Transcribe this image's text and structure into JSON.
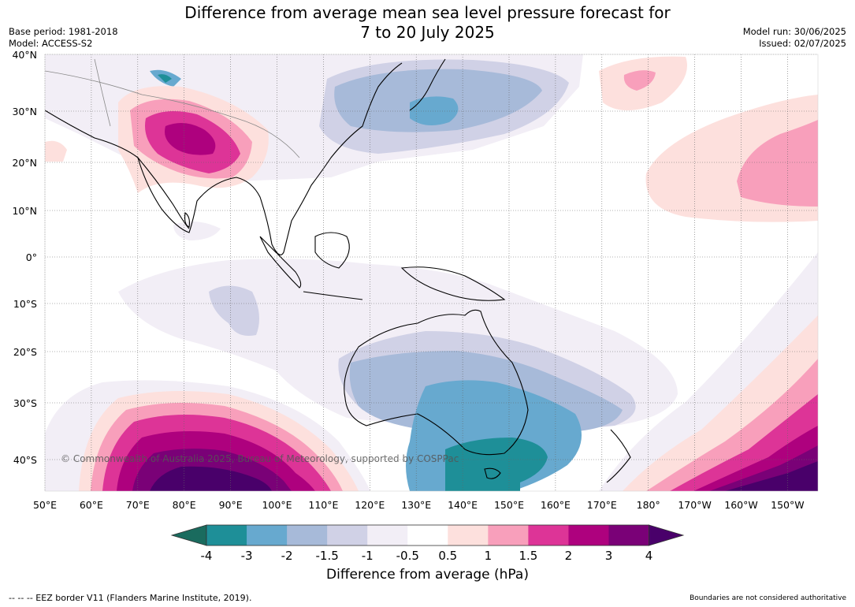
{
  "title_line1": "Difference from average mean sea level pressure forecast for",
  "title_line2": "7 to 20 July 2025",
  "base_period": "Base period: 1981-2018",
  "model": "Model: ACCESS-S2",
  "model_run": "Model run: 30/06/2025",
  "issued": "Issued: 02/07/2025",
  "copyright": "© Commonwealth of Australia 2025, Bureau of Meteorology, supported by COSPPac",
  "lon_labels": [
    "50°E",
    "60°E",
    "70°E",
    "80°E",
    "90°E",
    "100°E",
    "110°E",
    "120°E",
    "130°E",
    "140°E",
    "150°E",
    "160°E",
    "170°E",
    "180°",
    "170°W",
    "160°W",
    "150°W"
  ],
  "lat_labels": [
    "40°N",
    "30°N",
    "20°N",
    "10°N",
    "0°",
    "10°S",
    "20°S",
    "30°S",
    "40°S"
  ],
  "colorbar": {
    "title": "Difference from average (hPa)",
    "ticks": [
      "-4",
      "-3",
      "-2",
      "-1.5",
      "-1",
      "-0.5",
      "0.5",
      "1",
      "1.5",
      "2",
      "3",
      "4"
    ],
    "colors": [
      "#1a6b5e",
      "#1e8f98",
      "#67a9cf",
      "#a7bad9",
      "#d0d1e6",
      "#f2eef6",
      "#ffffff",
      "#fde0dd",
      "#f89fbb",
      "#dd3497",
      "#ae017e",
      "#7a0177",
      "#49006a"
    ]
  },
  "footer_left": "--  --  -- EEZ border V11 (Flanders Marine Institute, 2019).",
  "footer_right": "Boundaries are not considered authoritative"
}
